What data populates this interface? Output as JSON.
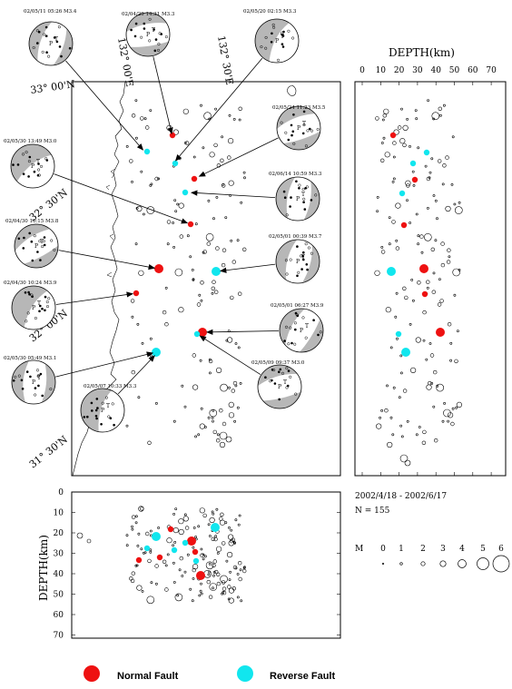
{
  "map": {
    "lat_labels": [
      "33° 00'N",
      "32° 30'N",
      "32° 00'N",
      "31° 30'N"
    ],
    "lon_labels": [
      "132° 00'E",
      "132° 30'E"
    ]
  },
  "depth_axis_top": {
    "title": "DEPTH(km)",
    "ticks": [
      "0",
      "10",
      "20",
      "30",
      "40",
      "50",
      "60",
      "70"
    ]
  },
  "depth_axis_left": {
    "title": "DEPTH(km)",
    "ticks": [
      "0",
      "10",
      "20",
      "30",
      "40",
      "50",
      "60",
      "70"
    ]
  },
  "info": {
    "period": "2002/4/18 - 2002/6/17",
    "count": "N = 155"
  },
  "magnitude_scale": {
    "label": "M",
    "values": [
      "0",
      "1",
      "2",
      "3",
      "4",
      "5",
      "6"
    ]
  },
  "legend": {
    "normal": {
      "label": "Normal Fault",
      "color": "#ee1111"
    },
    "reverse": {
      "label": "Reverse Fault",
      "color": "#11e6ee"
    }
  },
  "mechanisms": [
    {
      "id": "m1",
      "label": "02/05/11 05:26 M3.4"
    },
    {
      "id": "m2",
      "label": "02/04/29 14:31 M3.3"
    },
    {
      "id": "m3",
      "label": "02/05/20 02:15 M3.3"
    },
    {
      "id": "m4",
      "label": "02/05/24 11:23 M3.5"
    },
    {
      "id": "m5",
      "label": "02/05/30 13:49 M3.0"
    },
    {
      "id": "m6",
      "label": "02/06/14 10:59 M3.3"
    },
    {
      "id": "m7",
      "label": "02/04/30 10:15 M3.8"
    },
    {
      "id": "m8",
      "label": "02/05/01 00:39 M3.7"
    },
    {
      "id": "m9",
      "label": "02/04/30 10:24 M3.9"
    },
    {
      "id": "m10",
      "label": "02/05/01 06:27 M3.9"
    },
    {
      "id": "m11",
      "label": "02/05/30 05:49 M3.1"
    },
    {
      "id": "m12",
      "label": "02/05/07 10:33 M3.3"
    },
    {
      "id": "m13",
      "label": "02/05/09 09:37 M3.0"
    }
  ],
  "events": {
    "normal_map": [
      [
        190,
        149
      ],
      [
        214,
        197
      ],
      [
        210,
        247
      ],
      [
        175,
        296
      ],
      [
        150,
        323
      ],
      [
        223,
        366
      ]
    ],
    "reverse_map": [
      [
        162,
        167
      ],
      [
        193,
        180
      ],
      [
        204,
        212
      ],
      [
        238,
        299
      ],
      [
        217,
        368
      ],
      [
        172,
        388
      ]
    ],
    "normal_depth_right": [
      [
        433,
        149
      ],
      [
        457,
        198
      ],
      [
        445,
        248
      ],
      [
        467,
        296
      ],
      [
        468,
        324
      ],
      [
        485,
        366
      ]
    ],
    "reverse_depth_right": [
      [
        470,
        168
      ],
      [
        455,
        180
      ],
      [
        443,
        213
      ],
      [
        431,
        299
      ],
      [
        439,
        368
      ],
      [
        447,
        388
      ]
    ],
    "normal_depth_bottom": [
      [
        188,
        583
      ],
      [
        153,
        617
      ],
      [
        176,
        614
      ],
      [
        211,
        596
      ],
      [
        215,
        608
      ],
      [
        221,
        634
      ]
    ],
    "reverse_depth_bottom": [
      [
        162,
        604
      ],
      [
        192,
        606
      ],
      [
        204,
        598
      ],
      [
        237,
        581
      ],
      [
        216,
        618
      ],
      [
        172,
        591
      ]
    ]
  }
}
